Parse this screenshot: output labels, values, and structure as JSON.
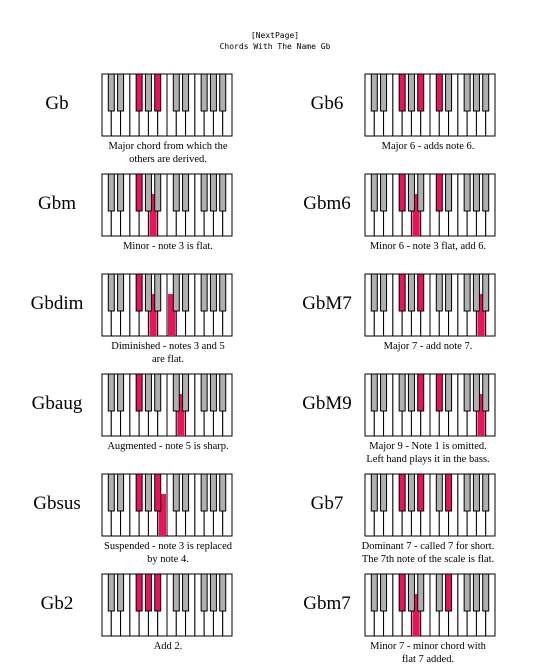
{
  "header": {
    "nav": "[NextPage]",
    "title": "Chords With The Name Gb"
  },
  "colors": {
    "highlight": "#e8145a",
    "black_key": "#b0b0b0",
    "outline": "#000000"
  },
  "chords": [
    {
      "name": "Gb",
      "description": [
        "Major chord from which the",
        "others are derived."
      ],
      "white_notes": [],
      "black_notes": [
        2,
        4
      ]
    },
    {
      "name": "Gb6",
      "description": [
        "Major 6 - adds note 6."
      ],
      "white_notes": [],
      "black_notes": [
        2,
        4,
        5
      ]
    },
    {
      "name": "Gbm",
      "description": [
        "Minor - note 3 is flat."
      ],
      "white_notes": [
        5
      ],
      "black_notes": [
        2
      ]
    },
    {
      "name": "Gbm6",
      "description": [
        "Minor 6 - note 3 flat, add 6."
      ],
      "white_notes": [
        5
      ],
      "black_notes": [
        2,
        5
      ]
    },
    {
      "name": "Gbdim",
      "description": [
        "Diminished - notes 3 and 5",
        "are flat."
      ],
      "white_notes": [
        5,
        7
      ],
      "black_notes": [
        2
      ]
    },
    {
      "name": "GbM7",
      "description": [
        "Major 7 - add note 7."
      ],
      "white_notes": [
        12
      ],
      "black_notes": [
        2,
        4
      ]
    },
    {
      "name": "Gbaug",
      "description": [
        "Augmented - note 5 is sharp."
      ],
      "white_notes": [
        8
      ],
      "black_notes": [
        2
      ]
    },
    {
      "name": "GbM9",
      "description": [
        "Major 9 - Note 1 is omitted.",
        "Left hand plays it in the bass."
      ],
      "white_notes": [
        12
      ],
      "black_notes": [
        4,
        5
      ]
    },
    {
      "name": "Gbsus",
      "description": [
        "Suspended - note 3 is replaced",
        "by note 4."
      ],
      "white_notes": [
        6
      ],
      "black_notes": [
        2,
        4
      ]
    },
    {
      "name": "Gb7",
      "description": [
        "Dominant 7 - called 7 for short.",
        "The 7th note of the scale is flat."
      ],
      "white_notes": [],
      "black_notes": [
        2,
        4,
        6
      ]
    },
    {
      "name": "Gb2",
      "description": [
        "Add 2."
      ],
      "white_notes": [],
      "black_notes": [
        2,
        3,
        4
      ]
    },
    {
      "name": "Gbm7",
      "description": [
        "Minor 7 - minor chord with",
        "flat 7 added."
      ],
      "white_notes": [
        5
      ],
      "black_notes": [
        2,
        6
      ]
    }
  ]
}
